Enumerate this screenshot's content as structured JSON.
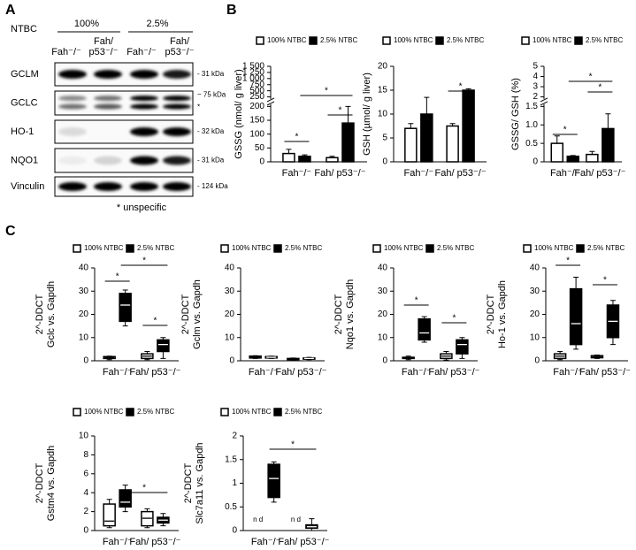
{
  "panel_labels": [
    "A",
    "B",
    "C"
  ],
  "blot": {
    "treatment_label": "NTBC",
    "doses": [
      "100%",
      "2.5%"
    ],
    "lanes": [
      [
        "Fah⁻/⁻"
      ],
      [
        "Fah/",
        "p53⁻/⁻"
      ],
      [
        "Fah⁻/⁻"
      ],
      [
        "Fah/",
        "p53⁻/⁻"
      ]
    ],
    "rows": [
      {
        "label": "GCLM",
        "markers": [
          "- 31 kDa"
        ]
      },
      {
        "label": "GCLC",
        "markers": [
          "~ 75 kDa",
          "*"
        ]
      },
      {
        "label": "HO-1",
        "markers": [
          "- 32 kDa"
        ]
      },
      {
        "label": "NQO1",
        "markers": [
          "- 31 kDa"
        ]
      },
      {
        "label": "Vinculin",
        "markers": [
          "- 124 kDa"
        ]
      }
    ],
    "footnote": "* unspecific"
  },
  "chart_data": [
    {
      "type": "bar",
      "ylabel": [
        "GSSG (nmol/ g liver)"
      ],
      "categories": [
        "Fah⁻/⁻",
        "Fah/ p53⁻/⁻"
      ],
      "series": [
        {
          "name": "100% NTBC",
          "color": "#ffffff",
          "values": [
            30,
            15
          ],
          "errors": [
            15,
            5
          ]
        },
        {
          "name": "2.5% NTBC",
          "color": "#000000",
          "values": [
            20,
            140
          ],
          "errors": [
            5,
            60
          ]
        }
      ],
      "ylim": [
        0,
        1500
      ],
      "ybreak": [
        200,
        250
      ],
      "yticks": [
        0,
        50,
        100,
        150,
        200,
        250,
        500,
        750,
        {
          "value": 1000,
          "label": "1 000"
        },
        {
          "value": 1250,
          "label": "1 250"
        },
        {
          "value": 1500,
          "label": "1 500"
        }
      ],
      "annotations": [
        "*",
        "*",
        "*"
      ]
    },
    {
      "type": "bar",
      "ylabel": [
        "GSH (µmol/ g liver)"
      ],
      "categories": [
        "Fah⁻/⁻",
        "Fah/ p53⁻/⁻"
      ],
      "series": [
        {
          "name": "100% NTBC",
          "color": "#ffffff",
          "values": [
            7,
            7.5
          ],
          "errors": [
            1,
            0.5
          ]
        },
        {
          "name": "2.5% NTBC",
          "color": "#000000",
          "values": [
            10,
            15
          ],
          "errors": [
            3.5,
            0.3
          ]
        }
      ],
      "ylim": [
        0,
        20
      ],
      "yticks": [
        0,
        5,
        10,
        15,
        20
      ],
      "annotations": [
        "*"
      ]
    },
    {
      "type": "bar",
      "ylabel": [
        "GSSG/ GSH (%)"
      ],
      "categories": [
        "Fah⁻/⁻",
        "Fah/ p53⁻/⁻"
      ],
      "series": [
        {
          "name": "100% NTBC",
          "color": "#ffffff",
          "values": [
            0.5,
            0.2
          ],
          "errors": [
            0.2,
            0.08
          ]
        },
        {
          "name": "2.5% NTBC",
          "color": "#000000",
          "values": [
            0.15,
            0.9
          ],
          "errors": [
            0.02,
            0.4
          ]
        }
      ],
      "ylim": [
        0,
        5
      ],
      "ybreak": [
        1.5,
        2
      ],
      "yticks": [
        0,
        0.5,
        {
          "value": 1,
          "label": "1.0"
        },
        1.5,
        2,
        3,
        4,
        5
      ],
      "annotations": [
        "*",
        "*",
        "*"
      ]
    },
    {
      "type": "box",
      "ylabel": [
        "2^-DDCT",
        "Gclc vs. Gapdh"
      ],
      "categories": [
        "Fah⁻/⁻",
        "Fah/ p53⁻/⁻"
      ],
      "series": [
        {
          "name": "100% NTBC",
          "color": "#ffffff",
          "values": [
            [
              0.5,
              1,
              1.3,
              1.8,
              2
            ],
            [
              0.5,
              1,
              2,
              3,
              4
            ]
          ]
        },
        {
          "name": "2.5% NTBC",
          "color": "#000000",
          "values": [
            [
              15,
              17,
              24,
              29,
              30.5
            ],
            [
              1,
              4,
              7,
              9,
              10
            ]
          ]
        }
      ],
      "ylim": [
        0,
        40
      ],
      "yticks": [
        0,
        10,
        20,
        30,
        40
      ],
      "annotations": [
        "*",
        "*",
        "*"
      ]
    },
    {
      "type": "box",
      "ylabel": [
        "2^-DDCT",
        "Gclm vs. Gapdh"
      ],
      "categories": [
        "Fah⁻/⁻",
        "Fah/ p53⁻/⁻"
      ],
      "series": [
        {
          "name": "100% NTBC",
          "color": "#ffffff",
          "values": [
            [
              1,
              1.2,
              1.5,
              2,
              2.2
            ],
            [
              0.3,
              0.5,
              0.7,
              1,
              1.2
            ]
          ]
        },
        {
          "name": "2.5% NTBC",
          "color": "#000000",
          "values": [
            [
              1,
              1.2,
              1.5,
              1.8,
              2
            ],
            [
              0.5,
              0.7,
              1,
              1.2,
              1.5
            ]
          ]
        }
      ],
      "ylim": [
        0,
        40
      ],
      "yticks": [
        0,
        10,
        20,
        30,
        40
      ]
    },
    {
      "type": "box",
      "ylabel": [
        "2^-DDCT",
        "Nqo1 vs. Gapdh"
      ],
      "categories": [
        "Fah⁻/⁻",
        "Fah/ p53⁻/⁻"
      ],
      "series": [
        {
          "name": "100% NTBC",
          "color": "#ffffff",
          "values": [
            [
              0.5,
              1,
              1.2,
              1.5,
              2
            ],
            [
              0.3,
              1,
              2,
              3,
              4
            ]
          ]
        },
        {
          "name": "2.5% NTBC",
          "color": "#000000",
          "values": [
            [
              8,
              9,
              12,
              18,
              19
            ],
            [
              1,
              3,
              7,
              9,
              10
            ]
          ]
        }
      ],
      "ylim": [
        0,
        40
      ],
      "yticks": [
        0,
        10,
        20,
        30,
        40
      ],
      "annotations": [
        "*",
        "*"
      ]
    },
    {
      "type": "box",
      "ylabel": [
        "2^-DDCT",
        "Ho-1 vs. Gapdh"
      ],
      "categories": [
        "Fah⁻/⁻",
        "Fah/ p53⁻/⁻"
      ],
      "series": [
        {
          "name": "100% NTBC",
          "color": "#ffffff",
          "values": [
            [
              0.5,
              1,
              2,
              3,
              4
            ],
            [
              1,
              1.3,
              1.8,
              2.2,
              2.5
            ]
          ]
        },
        {
          "name": "2.5% NTBC",
          "color": "#000000",
          "values": [
            [
              5,
              7,
              16,
              31,
              36
            ],
            [
              7,
              10,
              17,
              24,
              26
            ]
          ]
        }
      ],
      "ylim": [
        0,
        40
      ],
      "yticks": [
        0,
        10,
        20,
        30,
        40
      ],
      "annotations": [
        "*",
        "*"
      ]
    },
    {
      "type": "box",
      "ylabel": [
        "2^-DDCT",
        "Gstm4 vs. Gapdh"
      ],
      "categories": [
        "Fah⁻/⁻",
        "Fah/ p53⁻/⁻"
      ],
      "series": [
        {
          "name": "100% NTBC",
          "color": "#ffffff",
          "values": [
            [
              0.3,
              0.5,
              1,
              2.8,
              3.3
            ],
            [
              0.3,
              0.5,
              1.3,
              2,
              2.3
            ]
          ]
        },
        {
          "name": "2.5% NTBC",
          "color": "#000000",
          "values": [
            [
              2,
              2.5,
              3,
              4.3,
              4.8
            ],
            [
              0.5,
              0.8,
              1.1,
              1.4,
              1.8
            ]
          ]
        }
      ],
      "ylim": [
        0,
        10
      ],
      "yticks": [
        0,
        2,
        4,
        6,
        8,
        10
      ],
      "annotations": [
        "*"
      ]
    },
    {
      "type": "box",
      "ylabel": [
        "2^-DDCT",
        "Slc7a11 vs. Gapdh"
      ],
      "categories": [
        "Fah⁻/⁻",
        "Fah/ p53⁻/⁻"
      ],
      "series": [
        {
          "name": "100% NTBC",
          "color": "#ffffff",
          "values": [
            null,
            null
          ]
        },
        {
          "name": "2.5% NTBC",
          "color": "#000000",
          "values": [
            [
              0.6,
              0.7,
              1.1,
              1.4,
              1.45
            ],
            [
              0,
              0.05,
              0.08,
              0.12,
              0.25
            ]
          ]
        }
      ],
      "notes": [
        "n d",
        "n d"
      ],
      "ylim": [
        0,
        2
      ],
      "yticks": [
        0,
        0.5,
        1,
        1.5,
        2
      ],
      "annotations": [
        "*"
      ]
    }
  ]
}
